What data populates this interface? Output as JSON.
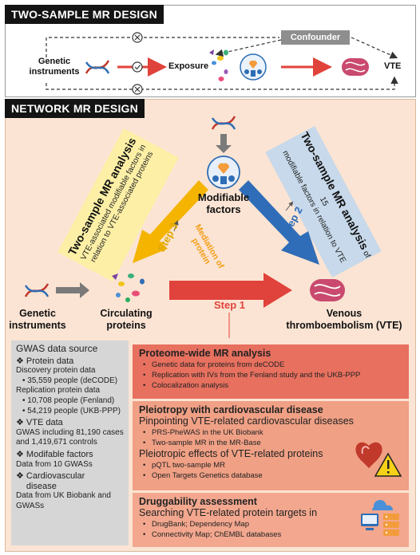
{
  "top": {
    "title": "TWO-SAMPLE MR DESIGN",
    "genetic": "Genetic\ninstruments",
    "exposure": "Exposure",
    "confounder": "Confounder",
    "vte": "VTE"
  },
  "network": {
    "title": "NETWORK MR DESIGN",
    "modifiable": "Modifiable\nfactors",
    "genetic": "Genetic\ninstruments",
    "circulating": "Circulating\nproteins",
    "venous": "Venous\nthromboembolism (VTE)",
    "step1": "Step 1",
    "step2": "Step 2",
    "step3": "Step 3",
    "mediation": "Mediation of\nprotein",
    "left_box_title": "Two-sample MR analysis",
    "left_box_sub": "VTE-associated modifiable factors in\nrelation to VTE-associated proteins",
    "right_box_title": "Two-sample MR analysis",
    "right_box_of": " of 15",
    "right_box_sub": "modifiable factors in relation to VTE"
  },
  "gwas": {
    "title": "GWAS data source",
    "protein_head": "Protein data",
    "disc_label": "Discovery protein data",
    "disc_1": "35,559 people (deCODE)",
    "rep_label": "Replication protein data",
    "rep_1": "10,708 people (Fenland)",
    "rep_2": "54,219 people (UKB-PPP)",
    "vte_head": "VTE data",
    "vte_text": "GWAS including 81,190 cases\nand 1,419,671 controls",
    "mod_head": "Modifable factors",
    "mod_text": "Data from 10 GWASs",
    "cvd_head": "Cardiovascular\ndisease",
    "cvd_text": "Data from UK Biobank and\nGWASs"
  },
  "cards": {
    "c1_title": "Proteome-wide MR analysis",
    "c1_items": [
      "Genetic data for proteins from deCODE",
      "Replication with IVs from the Fenland study and the UKB-PPP",
      "Colocalization analysis"
    ],
    "c2_title": "Pleiotropy with cardiovascular disease",
    "c2_sub1": "Pinpointing VTE-related cardiovascular diseases",
    "c2_items1": [
      "PRS-PheWAS in the UK Biobank",
      "Two-sample MR in the MR-Base"
    ],
    "c2_sub2": "Pleiotropic effects of VTE-related proteins",
    "c2_items2": [
      "pQTL two-sample MR",
      "Open Targets Genetics database"
    ],
    "c3_title": "Druggability assessment",
    "c3_sub": "Searching VTE-related protein targets in",
    "c3_items": [
      "DrugBank; Dependency Map",
      "Connectivity Map; ChEMBL databases"
    ]
  },
  "colors": {
    "red_arrow": "#e0433b",
    "blue_arrow": "#2f6db8",
    "yellow_arrow": "#f4b400",
    "card1": "#e7705f",
    "card2": "#f0a085",
    "card3": "#f2a78e"
  }
}
